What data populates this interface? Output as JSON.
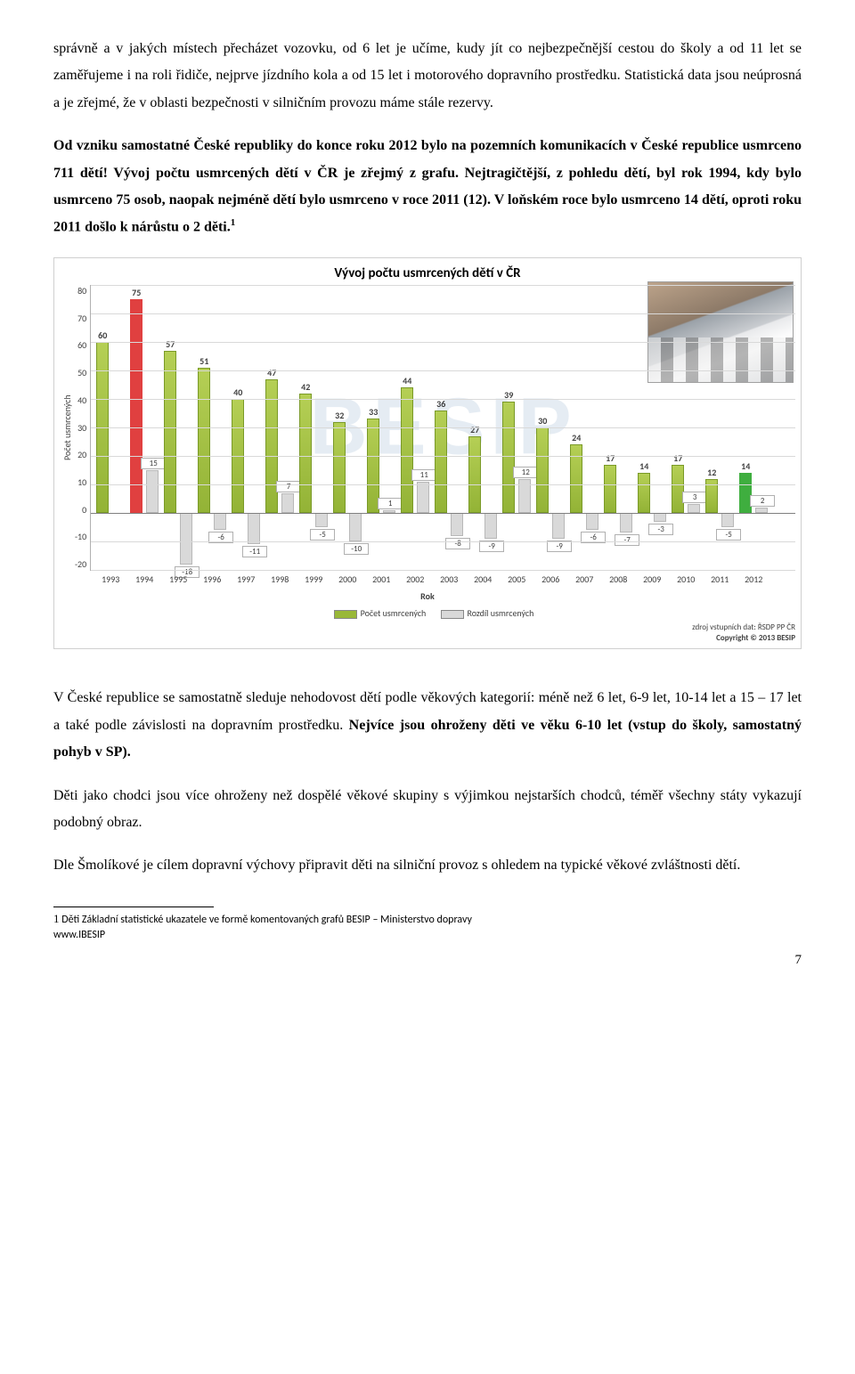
{
  "paragraphs": {
    "p1": "správně a v jakých místech přecházet vozovku, od 6 let je učíme, kudy jít co nejbezpečnější cestou do školy a od 11 let se zaměřujeme i na roli řidiče, nejprve jízdního kola a od 15 let i motorového dopravního prostředku. Statistická data jsou neúprosná a je zřejmé, že v oblasti bezpečnosti v silničním provozu máme stále rezervy.",
    "p2_a": "Od vzniku samostatné České republiky do konce roku 2012 bylo na pozemních komunikacích v České republice usmrceno 711 dětí! Vývoj počtu usmrcených dětí v ČR je zřejmý z grafu. Nejtragičtější, z pohledu dětí, byl rok 1994, kdy bylo usmrceno 75 osob, naopak nejméně dětí bylo usmrceno v roce 2011 (12). V loňském roce bylo usmrceno 14 dětí, oproti roku 2011 došlo k nárůstu o 2 děti.",
    "p2_sup": "1",
    "p3_a": "V České republice se samostatně sleduje nehodovost dětí podle věkových kategorií: méně než 6 let, 6-9 let, 10-14 let a 15 – 17 let a také podle závislosti na dopravním prostředku. ",
    "p3_b": "Nejvíce jsou ohroženy děti ve věku 6-10 let (vstup do školy, samostatný pohyb v SP).",
    "p4": "Děti jako chodci jsou více ohroženy než dospělé věkové skupiny s výjimkou nejstarších chodců, téměř všechny státy vykazují podobný obraz.",
    "p5": "Dle Šmolíkové je cílem dopravní výchovy připravit děti na silniční provoz s ohledem na typické věkové zvláštnosti dětí."
  },
  "chart": {
    "title": "Vývoj počtu usmrcených dětí v ČR",
    "y_label": "Počet usmrcených",
    "x_label": "Rok",
    "ylim": [
      -20,
      80
    ],
    "ytick_step": 10,
    "yticks": [
      80,
      70,
      60,
      50,
      40,
      30,
      20,
      10,
      0,
      -10,
      -20
    ],
    "years": [
      1993,
      1994,
      1995,
      1996,
      1997,
      1998,
      1999,
      2000,
      2001,
      2002,
      2003,
      2004,
      2005,
      2006,
      2007,
      2008,
      2009,
      2010,
      2011,
      2012
    ],
    "values": [
      60,
      75,
      57,
      51,
      40,
      47,
      42,
      32,
      33,
      44,
      36,
      27,
      39,
      30,
      24,
      17,
      14,
      17,
      12,
      14
    ],
    "diffs": [
      null,
      15,
      -18,
      -6,
      -11,
      7,
      -5,
      -10,
      1,
      11,
      -8,
      -9,
      12,
      -9,
      -6,
      -7,
      -3,
      3,
      -5,
      2
    ],
    "bar_highlight": {
      "1994": "#e04040",
      "2012": "#3fae3f"
    },
    "bar_color": "#99b838",
    "diff_color": "#d9d9d9",
    "grid_color": "#d9d9d9",
    "background": "#ffffff",
    "legend": {
      "a": "Počet usmrcených",
      "b": "Rozdíl usmrcených"
    },
    "source1": "zdroj vstupních dat: ŘSDP PP ČR",
    "source2": "Copyright © 2013 BESIP",
    "watermark": "BESIP"
  },
  "footnote": {
    "marker": "1",
    "line1": "Děti Základní statistické ukazatele ve formě komentovaných grafů BESIP – Ministerstvo dopravy",
    "line2": "www.IBESIP"
  },
  "page_number": "7"
}
